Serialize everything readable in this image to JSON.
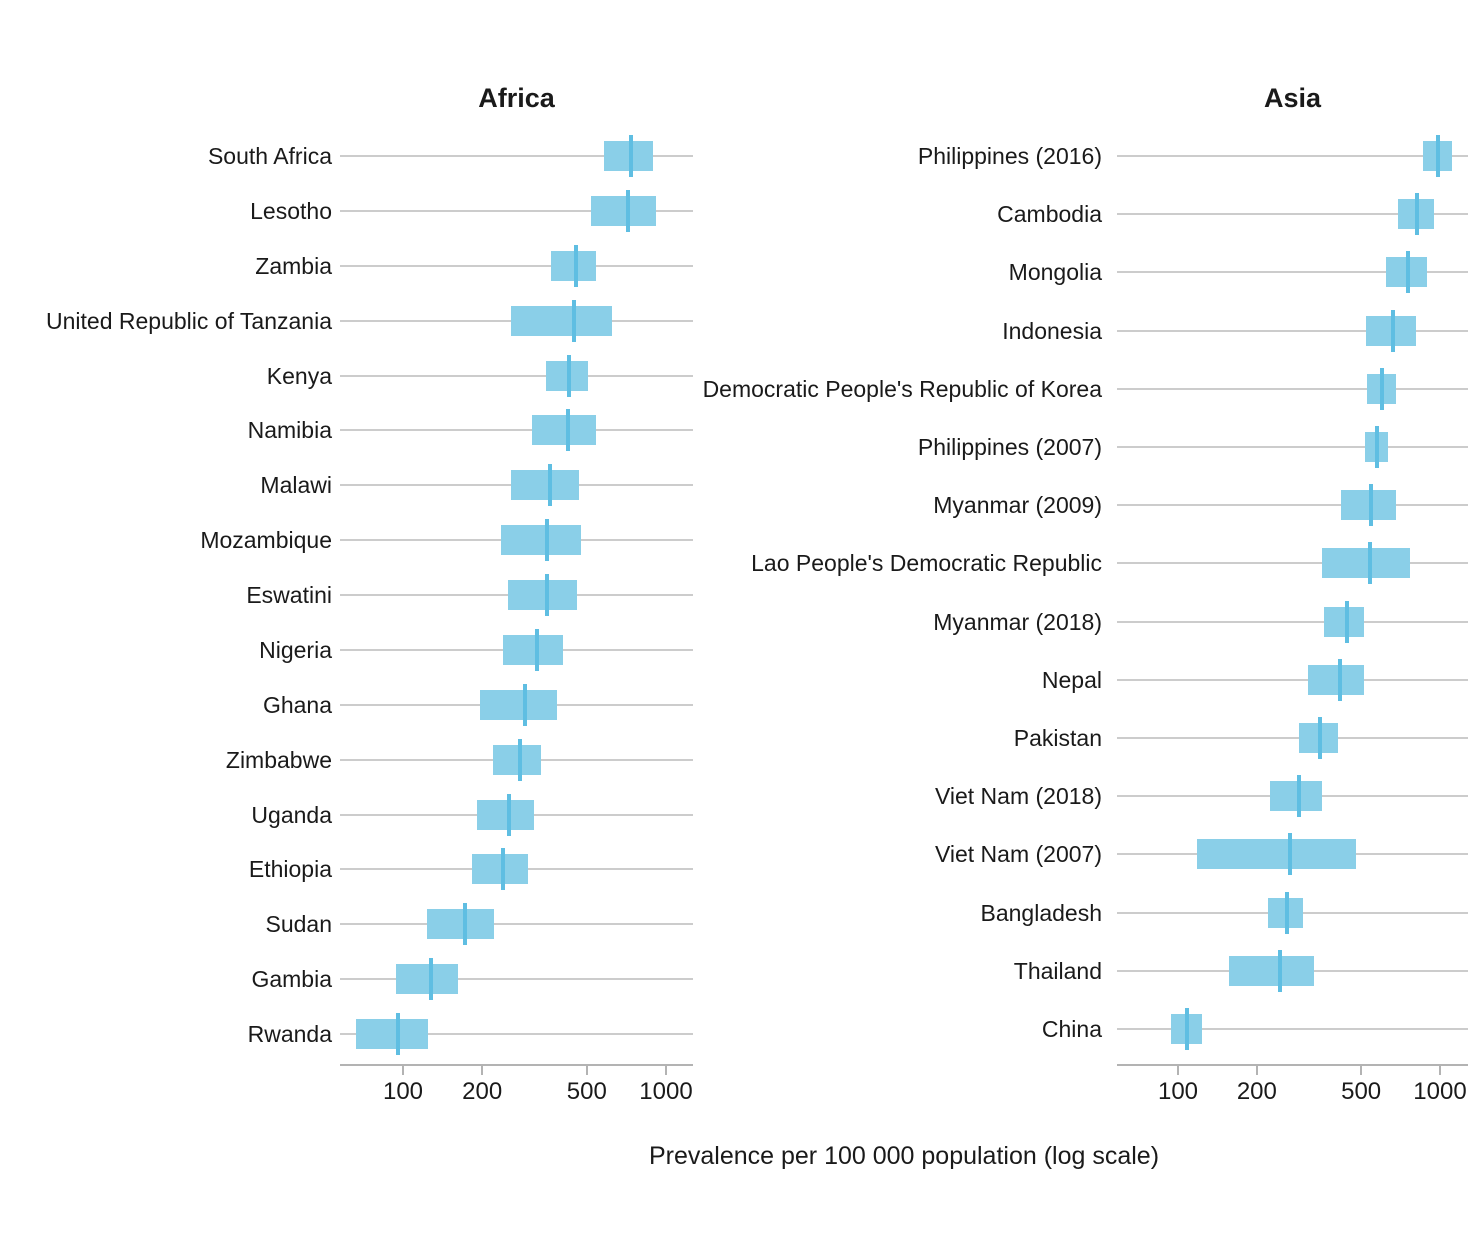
{
  "chart_data": {
    "type": "bar",
    "orientation": "horizontal",
    "mark": "uncertainty-interval bar with vertical point-estimate tick",
    "xlabel": "Prevalence per 100 000 population (log scale)",
    "x_scale": "log10",
    "x_ticks": [
      100,
      200,
      500,
      1000
    ],
    "x_domain": [
      58,
      1270
    ],
    "grid": "one horizontal gridline per country row, drawn behind bars",
    "legend": "none",
    "colors": {
      "bar_fill": "#8ACFE8",
      "point_tick": "#5FBEE2",
      "gridline": "#CCCCCC",
      "axis": "#B3B3B3",
      "text": "#1A1A1A"
    },
    "panels": [
      {
        "title": "Africa",
        "rows": [
          {
            "label": "South Africa",
            "estimate": 737,
            "lower": 580,
            "upper": 890
          },
          {
            "label": "Lesotho",
            "estimate": 720,
            "lower": 520,
            "upper": 915
          },
          {
            "label": "Zambia",
            "estimate": 455,
            "lower": 365,
            "upper": 540
          },
          {
            "label": "United Republic of Tanzania",
            "estimate": 445,
            "lower": 258,
            "upper": 625
          },
          {
            "label": "Kenya",
            "estimate": 426,
            "lower": 350,
            "upper": 505
          },
          {
            "label": "Namibia",
            "estimate": 423,
            "lower": 310,
            "upper": 540
          },
          {
            "label": "Malawi",
            "estimate": 363,
            "lower": 257,
            "upper": 467
          },
          {
            "label": "Mozambique",
            "estimate": 352,
            "lower": 235,
            "upper": 475
          },
          {
            "label": "Eswatini",
            "estimate": 353,
            "lower": 250,
            "upper": 460
          },
          {
            "label": "Nigeria",
            "estimate": 323,
            "lower": 240,
            "upper": 406
          },
          {
            "label": "Ghana",
            "estimate": 290,
            "lower": 196,
            "upper": 385
          },
          {
            "label": "Zimbabwe",
            "estimate": 278,
            "lower": 219,
            "upper": 334
          },
          {
            "label": "Uganda",
            "estimate": 253,
            "lower": 191,
            "upper": 316
          },
          {
            "label": "Ethiopia",
            "estimate": 240,
            "lower": 183,
            "upper": 300
          },
          {
            "label": "Sudan",
            "estimate": 172,
            "lower": 123,
            "upper": 221
          },
          {
            "label": "Gambia",
            "estimate": 128,
            "lower": 94,
            "upper": 162
          },
          {
            "label": "Rwanda",
            "estimate": 96,
            "lower": 66,
            "upper": 124
          }
        ]
      },
      {
        "title": "Asia",
        "rows": [
          {
            "label": "Philippines (2016)",
            "estimate": 985,
            "lower": 865,
            "upper": 1110
          },
          {
            "label": "Cambodia",
            "estimate": 815,
            "lower": 690,
            "upper": 950
          },
          {
            "label": "Mongolia",
            "estimate": 757,
            "lower": 620,
            "upper": 890
          },
          {
            "label": "Indonesia",
            "estimate": 660,
            "lower": 523,
            "upper": 813
          },
          {
            "label": "Democratic People's Republic of Korea",
            "estimate": 600,
            "lower": 527,
            "upper": 677
          },
          {
            "label": "Philippines (2007)",
            "estimate": 575,
            "lower": 516,
            "upper": 633
          },
          {
            "label": "Myanmar (2009)",
            "estimate": 547,
            "lower": 418,
            "upper": 679
          },
          {
            "label": "Lao People's Democratic Republic",
            "estimate": 540,
            "lower": 354,
            "upper": 766
          },
          {
            "label": "Myanmar (2018)",
            "estimate": 440,
            "lower": 360,
            "upper": 513
          },
          {
            "label": "Nepal",
            "estimate": 415,
            "lower": 314,
            "upper": 514
          },
          {
            "label": "Pakistan",
            "estimate": 349,
            "lower": 289,
            "upper": 408
          },
          {
            "label": "Viet Nam (2018)",
            "estimate": 290,
            "lower": 225,
            "upper": 354
          },
          {
            "label": "Viet Nam (2007)",
            "estimate": 267,
            "lower": 118,
            "upper": 477
          },
          {
            "label": "Bangladesh",
            "estimate": 260,
            "lower": 220,
            "upper": 300
          },
          {
            "label": "Thailand",
            "estimate": 245,
            "lower": 157,
            "upper": 330
          },
          {
            "label": "China",
            "estimate": 108,
            "lower": 94,
            "upper": 123
          }
        ]
      }
    ]
  }
}
